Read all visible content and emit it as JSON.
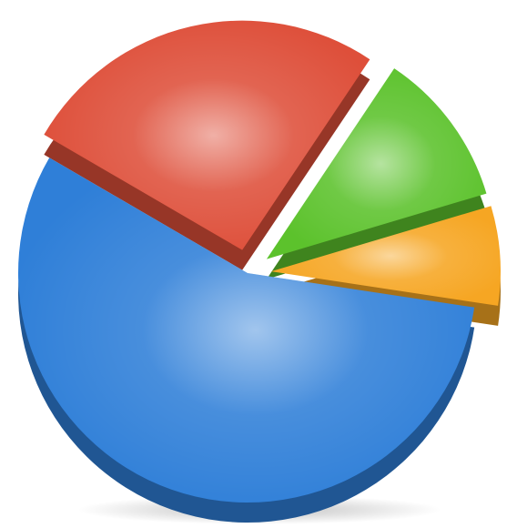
{
  "chart_data": {
    "type": "pie",
    "values": [
      56,
      26,
      11,
      7
    ],
    "colors": [
      "#2f7fd8",
      "#de4f3a",
      "#5cc22c",
      "#f6a623"
    ]
  }
}
